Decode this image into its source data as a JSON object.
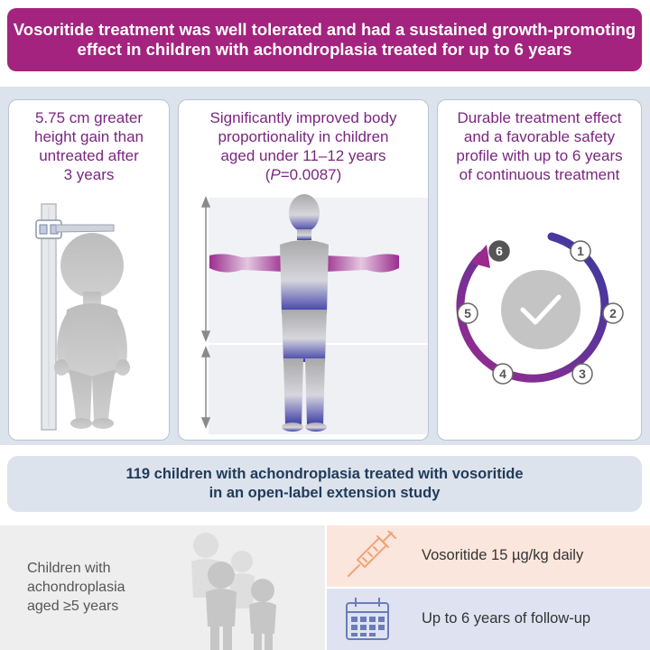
{
  "banner": {
    "line1": "Vosoritide treatment was well tolerated and had a sustained growth-promoting",
    "line2": "effect in children with achondroplasia treated for up to 6 years"
  },
  "cards": {
    "height": {
      "line1": "5.75 cm greater",
      "line2": "height gain than",
      "line3": "untreated after",
      "line4": "3 years"
    },
    "proportion": {
      "line1": "Significantly improved body",
      "line2": "proportionality in children",
      "line3": "aged under 11–12 years",
      "p_italic": "P",
      "p_value": "=0.0087"
    },
    "durable": {
      "line1": "Durable treatment effect",
      "line2": "and a favorable safety",
      "line3": "profile with up to 6 years",
      "line4": "of continuous treatment",
      "cycle_numbers": [
        "1",
        "2",
        "3",
        "4",
        "5",
        "6"
      ]
    }
  },
  "study": {
    "line1": "119 children with achondroplasia treated with vosoritide",
    "line2": "in an open-label extension study"
  },
  "population": {
    "line1": "Children with",
    "line2": "achondroplasia",
    "line3": "aged ≥5 years"
  },
  "regimen": {
    "dose": "Vosoritide 15 µg/kg daily",
    "followup": "Up to 6 years of follow-up"
  },
  "colors": {
    "banner": "#a3237e",
    "card_title": "#7a2680",
    "study_text": "#1f3a5a",
    "cycle_start": "#8e2a8f",
    "cycle_end": "#3a3aa0",
    "dose_bg": "#fbe6dd",
    "followup_bg": "#dfe3f1"
  },
  "icons": [
    "stadiometer-icon",
    "child-silhouette-icon",
    "body-silhouette-icon",
    "checkmark-icon",
    "syringe-icon",
    "calendar-icon",
    "children-group-icon"
  ]
}
